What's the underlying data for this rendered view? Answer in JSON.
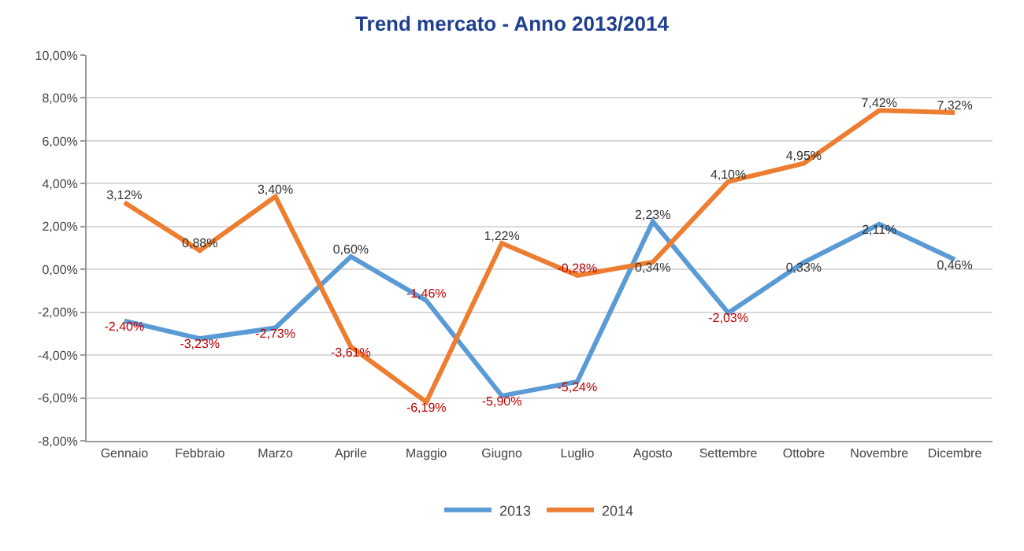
{
  "chart_data": {
    "type": "line",
    "title": "Trend mercato - Anno 2013/2014",
    "categories": [
      "Gennaio",
      "Febbraio",
      "Marzo",
      "Aprile",
      "Maggio",
      "Giugno",
      "Luglio",
      "Agosto",
      "Settembre",
      "Ottobre",
      "Novembre",
      "Dicembre"
    ],
    "series": [
      {
        "name": "2013",
        "color": "#5b9bd5",
        "values": [
          -2.4,
          -3.23,
          -2.73,
          0.6,
          -1.46,
          -5.9,
          -5.24,
          2.23,
          -2.03,
          0.33,
          2.11,
          0.46
        ],
        "value_labels": [
          "-2,40%",
          "-3,23%",
          "-2,73%",
          "0,60%",
          "-1,46%",
          "-5,90%",
          "-5,24%",
          "2,23%",
          "-2,03%",
          "0,33%",
          "2,11%",
          "0,46%"
        ]
      },
      {
        "name": "2014",
        "color": "#ed7d31",
        "values": [
          3.12,
          0.88,
          3.4,
          -3.61,
          -6.19,
          1.22,
          -0.28,
          0.34,
          4.1,
          4.95,
          7.42,
          7.32
        ],
        "value_labels": [
          "3,12%",
          "0,88%",
          "3,40%",
          "-3,61%",
          "-6,19%",
          "1,22%",
          "-0,28%",
          "0,34%",
          "4,10%",
          "4,95%",
          "7,42%",
          "7,32%"
        ]
      }
    ],
    "ylim": [
      -8,
      10
    ],
    "yticks": [
      {
        "value": -8,
        "label": "-8,00%"
      },
      {
        "value": -6,
        "label": "-6,00%"
      },
      {
        "value": -4,
        "label": "-4,00%"
      },
      {
        "value": -2,
        "label": "-2,00%"
      },
      {
        "value": 0,
        "label": "0,00%"
      },
      {
        "value": 2,
        "label": "2,00%"
      },
      {
        "value": 4,
        "label": "4,00%"
      },
      {
        "value": 6,
        "label": "6,00%"
      },
      {
        "value": 8,
        "label": "8,00%"
      },
      {
        "value": 10,
        "label": "10,00%"
      }
    ],
    "grid": "y",
    "legend": "bottom",
    "line_style": "solid"
  }
}
